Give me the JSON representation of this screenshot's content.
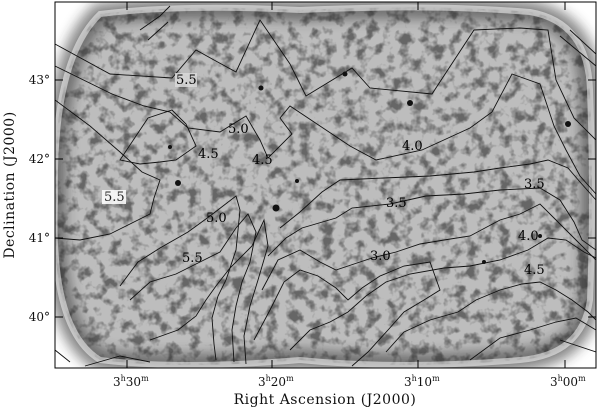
{
  "figure": {
    "x_axis_title": "Right Ascension (J2000)",
    "y_axis_title": "Declination (J2000)",
    "x_ticks": [
      {
        "h": "3",
        "m": "30"
      },
      {
        "h": "3",
        "m": "20"
      },
      {
        "h": "3",
        "m": "10"
      },
      {
        "h": "3",
        "m": "00"
      }
    ],
    "y_ticks": [
      "43°",
      "42°",
      "41°",
      "40°"
    ],
    "contour_labels": [
      "5.5",
      "5.0",
      "4.5",
      "4.5",
      "5.5",
      "5.0",
      "5.5",
      "4.0",
      "3.5",
      "3.5",
      "3.0",
      "4.0",
      "4.5"
    ]
  }
}
